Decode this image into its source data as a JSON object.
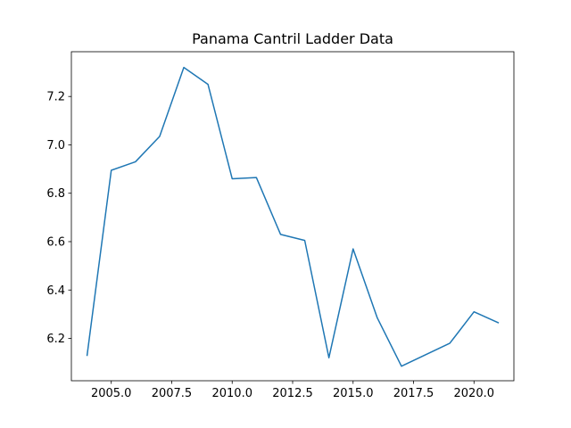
{
  "chart_data": {
    "type": "line",
    "title": "Panama Cantril Ladder Data",
    "xlabel": "",
    "ylabel": "",
    "xlim": [
      2003.35,
      2021.65
    ],
    "ylim": [
      6.025,
      7.385
    ],
    "x_ticks": [
      "2005.0",
      "2007.5",
      "2010.0",
      "2012.5",
      "2015.0",
      "2017.5",
      "2020.0"
    ],
    "y_ticks": [
      "6.2",
      "6.4",
      "6.6",
      "6.8",
      "7.0",
      "7.2"
    ],
    "grid": false,
    "series": [
      {
        "color": "#1f77b4",
        "x": [
          2004,
          2005,
          2006,
          2007,
          2008,
          2009,
          2010,
          2011,
          2012,
          2013,
          2014,
          2015,
          2016,
          2017,
          2019,
          2020,
          2021
        ],
        "y": [
          6.13,
          6.895,
          6.93,
          7.035,
          7.32,
          7.25,
          6.86,
          6.865,
          6.63,
          6.605,
          6.12,
          6.57,
          6.285,
          6.085,
          6.18,
          6.31,
          6.265
        ]
      }
    ]
  }
}
